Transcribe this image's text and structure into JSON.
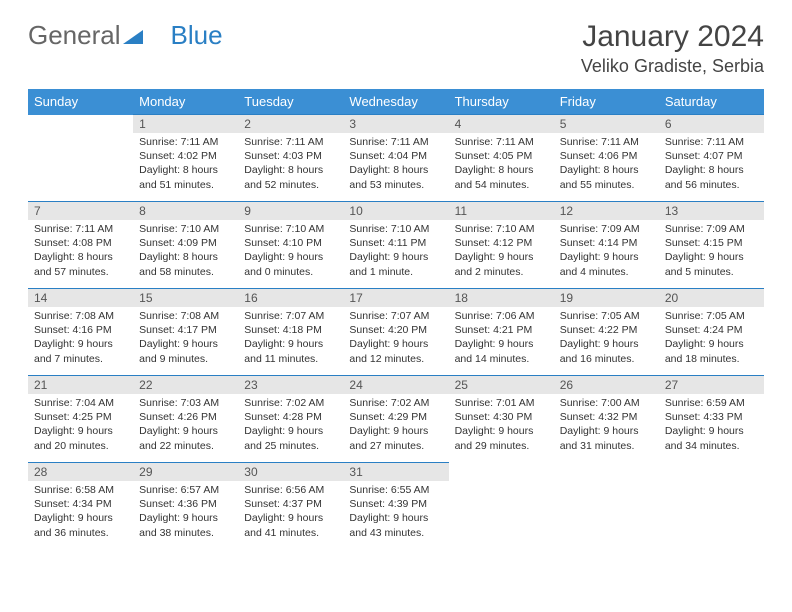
{
  "logo": {
    "part1": "General",
    "part2": "Blue"
  },
  "title": "January 2024",
  "location": "Veliko Gradiste, Serbia",
  "colors": {
    "header_bg": "#3b8fd4",
    "border": "#2a7fc4",
    "daynum_bg": "#e6e6e6"
  },
  "weekdays": [
    "Sunday",
    "Monday",
    "Tuesday",
    "Wednesday",
    "Thursday",
    "Friday",
    "Saturday"
  ],
  "weeks": [
    [
      null,
      {
        "n": "1",
        "sr": "7:11 AM",
        "ss": "4:02 PM",
        "dl": "8 hours and 51 minutes."
      },
      {
        "n": "2",
        "sr": "7:11 AM",
        "ss": "4:03 PM",
        "dl": "8 hours and 52 minutes."
      },
      {
        "n": "3",
        "sr": "7:11 AM",
        "ss": "4:04 PM",
        "dl": "8 hours and 53 minutes."
      },
      {
        "n": "4",
        "sr": "7:11 AM",
        "ss": "4:05 PM",
        "dl": "8 hours and 54 minutes."
      },
      {
        "n": "5",
        "sr": "7:11 AM",
        "ss": "4:06 PM",
        "dl": "8 hours and 55 minutes."
      },
      {
        "n": "6",
        "sr": "7:11 AM",
        "ss": "4:07 PM",
        "dl": "8 hours and 56 minutes."
      }
    ],
    [
      {
        "n": "7",
        "sr": "7:11 AM",
        "ss": "4:08 PM",
        "dl": "8 hours and 57 minutes."
      },
      {
        "n": "8",
        "sr": "7:10 AM",
        "ss": "4:09 PM",
        "dl": "8 hours and 58 minutes."
      },
      {
        "n": "9",
        "sr": "7:10 AM",
        "ss": "4:10 PM",
        "dl": "9 hours and 0 minutes."
      },
      {
        "n": "10",
        "sr": "7:10 AM",
        "ss": "4:11 PM",
        "dl": "9 hours and 1 minute."
      },
      {
        "n": "11",
        "sr": "7:10 AM",
        "ss": "4:12 PM",
        "dl": "9 hours and 2 minutes."
      },
      {
        "n": "12",
        "sr": "7:09 AM",
        "ss": "4:14 PM",
        "dl": "9 hours and 4 minutes."
      },
      {
        "n": "13",
        "sr": "7:09 AM",
        "ss": "4:15 PM",
        "dl": "9 hours and 5 minutes."
      }
    ],
    [
      {
        "n": "14",
        "sr": "7:08 AM",
        "ss": "4:16 PM",
        "dl": "9 hours and 7 minutes."
      },
      {
        "n": "15",
        "sr": "7:08 AM",
        "ss": "4:17 PM",
        "dl": "9 hours and 9 minutes."
      },
      {
        "n": "16",
        "sr": "7:07 AM",
        "ss": "4:18 PM",
        "dl": "9 hours and 11 minutes."
      },
      {
        "n": "17",
        "sr": "7:07 AM",
        "ss": "4:20 PM",
        "dl": "9 hours and 12 minutes."
      },
      {
        "n": "18",
        "sr": "7:06 AM",
        "ss": "4:21 PM",
        "dl": "9 hours and 14 minutes."
      },
      {
        "n": "19",
        "sr": "7:05 AM",
        "ss": "4:22 PM",
        "dl": "9 hours and 16 minutes."
      },
      {
        "n": "20",
        "sr": "7:05 AM",
        "ss": "4:24 PM",
        "dl": "9 hours and 18 minutes."
      }
    ],
    [
      {
        "n": "21",
        "sr": "7:04 AM",
        "ss": "4:25 PM",
        "dl": "9 hours and 20 minutes."
      },
      {
        "n": "22",
        "sr": "7:03 AM",
        "ss": "4:26 PM",
        "dl": "9 hours and 22 minutes."
      },
      {
        "n": "23",
        "sr": "7:02 AM",
        "ss": "4:28 PM",
        "dl": "9 hours and 25 minutes."
      },
      {
        "n": "24",
        "sr": "7:02 AM",
        "ss": "4:29 PM",
        "dl": "9 hours and 27 minutes."
      },
      {
        "n": "25",
        "sr": "7:01 AM",
        "ss": "4:30 PM",
        "dl": "9 hours and 29 minutes."
      },
      {
        "n": "26",
        "sr": "7:00 AM",
        "ss": "4:32 PM",
        "dl": "9 hours and 31 minutes."
      },
      {
        "n": "27",
        "sr": "6:59 AM",
        "ss": "4:33 PM",
        "dl": "9 hours and 34 minutes."
      }
    ],
    [
      {
        "n": "28",
        "sr": "6:58 AM",
        "ss": "4:34 PM",
        "dl": "9 hours and 36 minutes."
      },
      {
        "n": "29",
        "sr": "6:57 AM",
        "ss": "4:36 PM",
        "dl": "9 hours and 38 minutes."
      },
      {
        "n": "30",
        "sr": "6:56 AM",
        "ss": "4:37 PM",
        "dl": "9 hours and 41 minutes."
      },
      {
        "n": "31",
        "sr": "6:55 AM",
        "ss": "4:39 PM",
        "dl": "9 hours and 43 minutes."
      },
      null,
      null,
      null
    ]
  ],
  "labels": {
    "sunrise": "Sunrise:",
    "sunset": "Sunset:",
    "daylight": "Daylight:"
  }
}
